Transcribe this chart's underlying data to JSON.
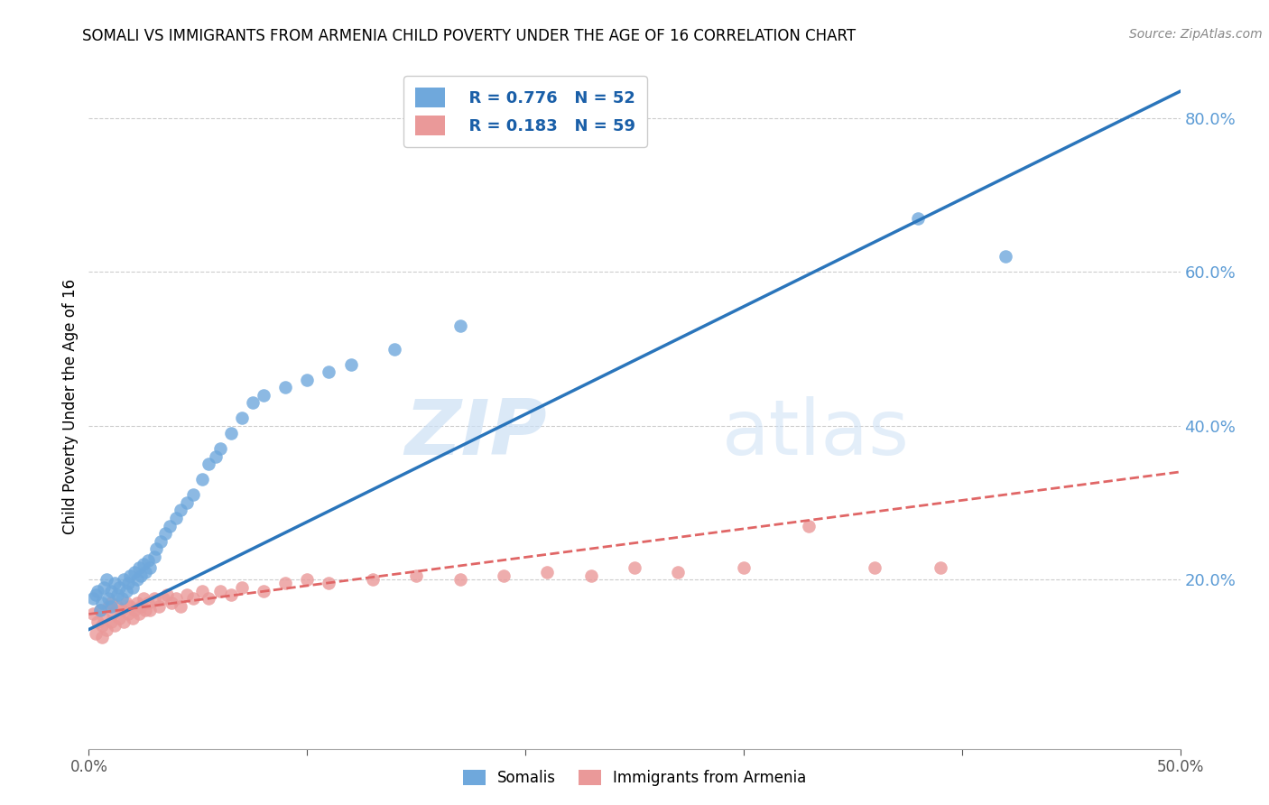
{
  "title": "SOMALI VS IMMIGRANTS FROM ARMENIA CHILD POVERTY UNDER THE AGE OF 16 CORRELATION CHART",
  "source": "Source: ZipAtlas.com",
  "ylabel": "Child Poverty Under the Age of 16",
  "xlim": [
    0.0,
    0.5
  ],
  "ylim": [
    -0.02,
    0.87
  ],
  "yticks": [
    0.0,
    0.2,
    0.4,
    0.6,
    0.8
  ],
  "ytick_labels": [
    "",
    "20.0%",
    "40.0%",
    "60.0%",
    "80.0%"
  ],
  "xticks": [
    0.0,
    0.1,
    0.2,
    0.3,
    0.4,
    0.5
  ],
  "xtick_labels": [
    "0.0%",
    "",
    "",
    "",
    "",
    "50.0%"
  ],
  "somali_color": "#6fa8dc",
  "armenia_color": "#ea9999",
  "somali_line_color": "#2a75bb",
  "armenia_line_color": "#e06666",
  "legend_r_somali": "R = 0.776",
  "legend_n_somali": "N = 52",
  "legend_r_armenia": "R = 0.183",
  "legend_n_armenia": "N = 59",
  "label_somali": "Somalis",
  "label_armenia": "Immigrants from Armenia",
  "watermark_zip": "ZIP",
  "watermark_atlas": "atlas",
  "somali_x": [
    0.002,
    0.003,
    0.004,
    0.005,
    0.006,
    0.007,
    0.008,
    0.009,
    0.01,
    0.01,
    0.012,
    0.013,
    0.014,
    0.015,
    0.016,
    0.017,
    0.018,
    0.019,
    0.02,
    0.021,
    0.022,
    0.023,
    0.024,
    0.025,
    0.026,
    0.027,
    0.028,
    0.03,
    0.031,
    0.033,
    0.035,
    0.037,
    0.04,
    0.042,
    0.045,
    0.048,
    0.052,
    0.055,
    0.058,
    0.06,
    0.065,
    0.07,
    0.075,
    0.08,
    0.09,
    0.1,
    0.11,
    0.12,
    0.14,
    0.17,
    0.38,
    0.42
  ],
  "somali_y": [
    0.175,
    0.18,
    0.185,
    0.16,
    0.17,
    0.19,
    0.2,
    0.175,
    0.165,
    0.185,
    0.195,
    0.18,
    0.19,
    0.175,
    0.2,
    0.185,
    0.195,
    0.205,
    0.19,
    0.21,
    0.2,
    0.215,
    0.205,
    0.22,
    0.21,
    0.225,
    0.215,
    0.23,
    0.24,
    0.25,
    0.26,
    0.27,
    0.28,
    0.29,
    0.3,
    0.31,
    0.33,
    0.35,
    0.36,
    0.37,
    0.39,
    0.41,
    0.43,
    0.44,
    0.45,
    0.46,
    0.47,
    0.48,
    0.5,
    0.53,
    0.67,
    0.62
  ],
  "armenia_x": [
    0.002,
    0.003,
    0.004,
    0.005,
    0.006,
    0.006,
    0.007,
    0.008,
    0.009,
    0.01,
    0.01,
    0.011,
    0.012,
    0.013,
    0.014,
    0.015,
    0.016,
    0.017,
    0.018,
    0.019,
    0.02,
    0.021,
    0.022,
    0.023,
    0.024,
    0.025,
    0.026,
    0.027,
    0.028,
    0.03,
    0.032,
    0.034,
    0.036,
    0.038,
    0.04,
    0.042,
    0.045,
    0.048,
    0.052,
    0.055,
    0.06,
    0.065,
    0.07,
    0.08,
    0.09,
    0.1,
    0.11,
    0.13,
    0.15,
    0.17,
    0.19,
    0.21,
    0.23,
    0.25,
    0.27,
    0.3,
    0.33,
    0.36,
    0.39
  ],
  "armenia_y": [
    0.155,
    0.13,
    0.145,
    0.16,
    0.14,
    0.125,
    0.15,
    0.135,
    0.165,
    0.145,
    0.17,
    0.155,
    0.14,
    0.165,
    0.15,
    0.16,
    0.145,
    0.17,
    0.155,
    0.165,
    0.15,
    0.16,
    0.17,
    0.155,
    0.165,
    0.175,
    0.16,
    0.17,
    0.16,
    0.175,
    0.165,
    0.175,
    0.18,
    0.17,
    0.175,
    0.165,
    0.18,
    0.175,
    0.185,
    0.175,
    0.185,
    0.18,
    0.19,
    0.185,
    0.195,
    0.2,
    0.195,
    0.2,
    0.205,
    0.2,
    0.205,
    0.21,
    0.205,
    0.215,
    0.21,
    0.215,
    0.27,
    0.215,
    0.215
  ],
  "somali_trend_x": [
    0.0,
    0.5
  ],
  "somali_trend_y": [
    0.135,
    0.835
  ],
  "armenia_trend_x": [
    0.0,
    0.5
  ],
  "armenia_trend_y": [
    0.155,
    0.34
  ],
  "background_color": "#ffffff",
  "grid_color": "#cccccc",
  "right_yaxis_color": "#5b9bd5"
}
